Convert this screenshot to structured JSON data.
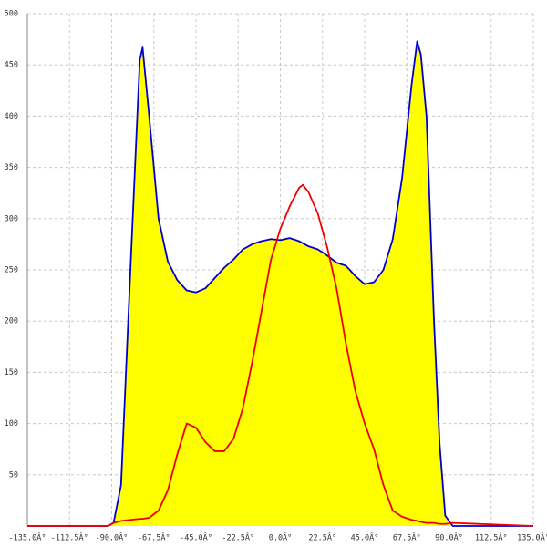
{
  "chart_data": {
    "type": "area",
    "x": [
      -135,
      -92,
      -89,
      -85,
      -80,
      -75,
      -73.5,
      -70,
      -65,
      -60,
      -55,
      -50,
      -45,
      -40,
      -35,
      -30,
      -25,
      -20,
      -15,
      -10,
      -5,
      0,
      5,
      10,
      12,
      15,
      20,
      25,
      30,
      35,
      40,
      45,
      50,
      55,
      60,
      65,
      70,
      73,
      75,
      78,
      82,
      85,
      88,
      92,
      135
    ],
    "series": [
      {
        "color": "#0000cc",
        "fill": "#ffff00",
        "values": [
          0,
          0,
          3,
          40,
          250,
          455,
          467,
          400,
          300,
          258,
          240,
          230,
          228,
          232,
          242,
          252,
          260,
          270,
          275,
          278,
          280,
          279,
          281,
          278,
          276,
          273,
          270,
          264,
          257,
          254,
          244,
          236,
          238,
          250,
          280,
          340,
          430,
          473,
          460,
          400,
          200,
          80,
          10,
          0,
          0
        ]
      },
      {
        "color": "#ee0000",
        "values": [
          0,
          0,
          3,
          5,
          6,
          7,
          7,
          8,
          15,
          35,
          70,
          100,
          96,
          82,
          73,
          73,
          85,
          115,
          160,
          210,
          260,
          290,
          312,
          330,
          333,
          326,
          305,
          272,
          232,
          178,
          132,
          100,
          75,
          40,
          15,
          9,
          6,
          5,
          4,
          3,
          3,
          2,
          2,
          3,
          0
        ]
      }
    ],
    "xlim": [
      -135,
      135
    ],
    "xticks": [
      {
        "value": -135,
        "label": "-135.0Â°"
      },
      {
        "value": -112.5,
        "label": "-112.5Â°"
      },
      {
        "value": -90,
        "label": "-90.0Â°"
      },
      {
        "value": -67.5,
        "label": "-67.5Â°"
      },
      {
        "value": -45,
        "label": "-45.0Â°"
      },
      {
        "value": -22.5,
        "label": "-22.5Â°"
      },
      {
        "value": 0,
        "label": "0.0Â°"
      },
      {
        "value": 22.5,
        "label": "22.5Â°"
      },
      {
        "value": 45,
        "label": "45.0Â°"
      },
      {
        "value": 67.5,
        "label": "67.5Â°"
      },
      {
        "value": 90,
        "label": "90.0Â°"
      },
      {
        "value": 112.5,
        "label": "112.5Â°"
      },
      {
        "value": 135,
        "label": "135.0Â°"
      }
    ],
    "ylim": [
      0,
      500
    ],
    "yticks": [
      50,
      100,
      150,
      200,
      250,
      300,
      350,
      400,
      450,
      500
    ],
    "grid": true
  }
}
